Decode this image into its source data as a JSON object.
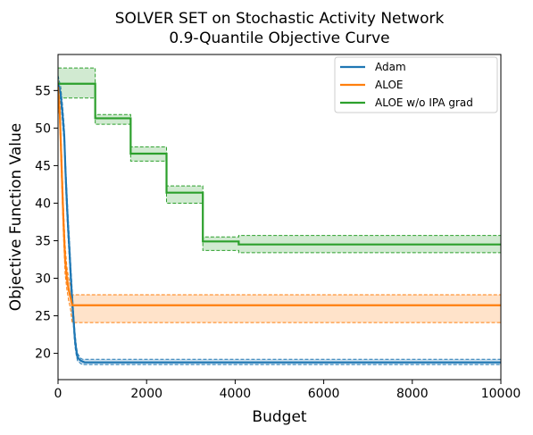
{
  "chart_data": {
    "type": "line",
    "title": [
      "SOLVER SET on Stochastic Activity Network",
      "0.9-Quantile Objective Curve"
    ],
    "xlabel": "Budget",
    "ylabel": "Objective Function Value",
    "xlim": [
      0,
      10000
    ],
    "ylim": [
      16.5,
      59.8
    ],
    "xticks": [
      0,
      2000,
      4000,
      6000,
      8000,
      10000
    ],
    "xtick_labels": [
      "0",
      "2000",
      "4000",
      "6000",
      "8000",
      "10000"
    ],
    "yticks": [
      20,
      25,
      30,
      35,
      40,
      45,
      50,
      55
    ],
    "ytick_labels": [
      "20",
      "25",
      "30",
      "35",
      "40",
      "45",
      "50",
      "55"
    ],
    "grid": false,
    "legend_position": "top-right",
    "series": [
      {
        "name": "Adam",
        "color": "#1f77b4",
        "x": [
          0,
          60,
          100,
          140,
          170,
          200,
          230,
          260,
          290,
          320,
          350,
          380,
          410,
          440,
          480,
          520,
          560,
          600,
          10000
        ],
        "y": [
          56.0,
          54.5,
          52.0,
          49.0,
          44.0,
          40.0,
          36.5,
          33.5,
          30.0,
          27.0,
          24.5,
          22.0,
          20.5,
          19.5,
          19.2,
          19.0,
          18.9,
          18.8,
          18.8
        ],
        "ci_upper": [
          57.0,
          55.5,
          53.2,
          50.2,
          45.5,
          41.5,
          38.0,
          35.0,
          31.5,
          28.5,
          25.5,
          23.0,
          21.2,
          20.0,
          19.6,
          19.3,
          19.2,
          19.2,
          19.2
        ],
        "ci_lower": [
          55.0,
          53.5,
          50.8,
          47.8,
          42.5,
          38.5,
          35.0,
          32.0,
          28.5,
          25.5,
          23.5,
          21.0,
          19.8,
          19.0,
          18.8,
          18.6,
          18.5,
          18.5,
          18.5
        ]
      },
      {
        "name": "ALOE",
        "color": "#ff7f0e",
        "x": [
          0,
          40,
          80,
          120,
          160,
          200,
          240,
          280,
          320,
          10000
        ],
        "y": [
          55.5,
          52.0,
          45.0,
          38.0,
          32.5,
          30.0,
          28.5,
          27.5,
          26.4,
          26.4
        ],
        "ci_upper": [
          56.5,
          53.5,
          47.0,
          40.0,
          34.5,
          31.5,
          30.0,
          29.0,
          27.8,
          27.8
        ],
        "ci_lower": [
          54.5,
          50.5,
          43.0,
          36.0,
          30.5,
          28.5,
          27.0,
          26.0,
          24.1,
          24.1
        ]
      },
      {
        "name": "ALOE w/o IPA grad",
        "color": "#2ca02c",
        "x": [
          0,
          840,
          840,
          1640,
          1640,
          2450,
          2450,
          3270,
          3270,
          4080,
          4080,
          10000
        ],
        "y": [
          55.9,
          55.9,
          51.3,
          51.3,
          46.6,
          46.6,
          41.4,
          41.4,
          34.9,
          34.9,
          34.5,
          34.5
        ],
        "ci_upper": [
          58.0,
          58.0,
          51.8,
          51.8,
          47.5,
          47.5,
          42.3,
          42.3,
          35.5,
          35.5,
          35.7,
          35.7
        ],
        "ci_lower": [
          54.0,
          54.0,
          50.5,
          50.5,
          45.6,
          45.6,
          40.0,
          40.0,
          33.7,
          33.7,
          33.4,
          33.4
        ]
      }
    ]
  }
}
